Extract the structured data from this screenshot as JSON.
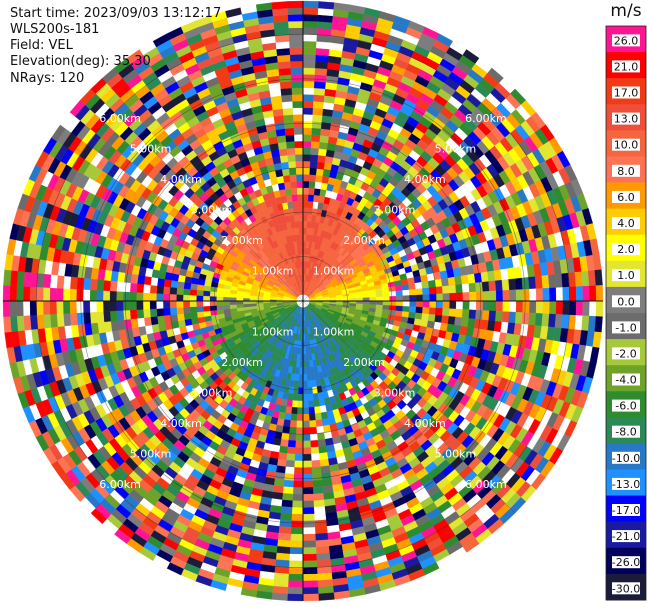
{
  "header": {
    "start_time": "Start time: 2023/09/03 13:12:17",
    "instrument": "WLS200s-181",
    "field": "Field: VEL",
    "elevation": "Elevation(deg): 35.30",
    "nrays": "NRays: 120"
  },
  "chart_data": {
    "type": "polar-ppi",
    "title": "",
    "field": "VEL",
    "units": "m/s",
    "elevation_deg": 35.3,
    "n_rays": 120,
    "range_rings_km": [
      1.0,
      2.0,
      3.0,
      4.0,
      5.0,
      6.0
    ],
    "range_ring_labels": [
      "1.00km",
      "2.00km",
      "3.00km",
      "4.00km",
      "5.00km",
      "6.00km"
    ],
    "colorbar": {
      "label": "m/s",
      "ticks": [
        "26.0",
        "21.0",
        "17.0",
        "13.0",
        "10.0",
        "8.0",
        "6.0",
        "4.0",
        "2.0",
        "1.0",
        "0.0",
        "-1.0",
        "-2.0",
        "-4.0",
        "-6.0",
        "-8.0",
        "-10.0",
        "-13.0",
        "-17.0",
        "-21.0",
        "-26.0",
        "-30.0"
      ],
      "colors": [
        "#ff1493",
        "#ff0000",
        "#f23b16",
        "#ef4f3a",
        "#f5653e",
        "#ff7355",
        "#ff9a00",
        "#ffcc00",
        "#ffff00",
        "#e3e630",
        "#7d7d7d",
        "#6c6c6c",
        "#a6c93a",
        "#6ea32a",
        "#2e8b2e",
        "#2a8a55",
        "#2878c8",
        "#1e90ff",
        "#0000ff",
        "#1a1aa0",
        "#00005a",
        "#1b1b3a"
      ]
    },
    "observed_pattern": {
      "inner_range_km": 1.8,
      "north_sector_velocity_ms": [
        10.0,
        17.0
      ],
      "east_west_velocity_ms": [
        1.0,
        4.0
      ],
      "south_sector_velocity_ms": [
        -10.0,
        -2.0
      ],
      "outer_range": "noise (all colors)"
    }
  }
}
